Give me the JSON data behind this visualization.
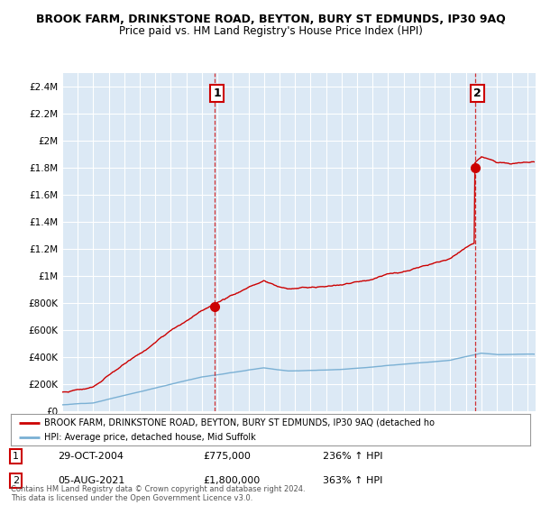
{
  "title": "BROOK FARM, DRINKSTONE ROAD, BEYTON, BURY ST EDMUNDS, IP30 9AQ",
  "subtitle": "Price paid vs. HM Land Registry's House Price Index (HPI)",
  "legend_red": "BROOK FARM, DRINKSTONE ROAD, BEYTON, BURY ST EDMUNDS, IP30 9AQ (detached ho",
  "legend_blue": "HPI: Average price, detached house, Mid Suffolk",
  "transaction1_label": "1",
  "transaction1_date": "29-OCT-2004",
  "transaction1_price": "£775,000",
  "transaction1_hpi": "236% ↑ HPI",
  "transaction1_year": 2004.83,
  "transaction1_value": 775000,
  "transaction2_label": "2",
  "transaction2_date": "05-AUG-2021",
  "transaction2_price": "£1,800,000",
  "transaction2_hpi": "363% ↑ HPI",
  "transaction2_year": 2021.58,
  "transaction2_value": 1800000,
  "red_color": "#cc0000",
  "blue_color": "#7ab0d4",
  "plot_bg_color": "#dce9f5",
  "background_color": "#ffffff",
  "grid_color": "#ffffff",
  "ylim": [
    0,
    2500000
  ],
  "xlim": [
    1995,
    2025.5
  ],
  "yticks": [
    0,
    200000,
    400000,
    600000,
    800000,
    1000000,
    1200000,
    1400000,
    1600000,
    1800000,
    2000000,
    2200000,
    2400000
  ],
  "ytick_labels": [
    "£0",
    "£200K",
    "£400K",
    "£600K",
    "£800K",
    "£1M",
    "£1.2M",
    "£1.4M",
    "£1.6M",
    "£1.8M",
    "£2M",
    "£2.2M",
    "£2.4M"
  ],
  "xticks": [
    1995,
    1996,
    1997,
    1998,
    1999,
    2000,
    2001,
    2002,
    2003,
    2004,
    2005,
    2006,
    2007,
    2008,
    2009,
    2010,
    2011,
    2012,
    2013,
    2014,
    2015,
    2016,
    2017,
    2018,
    2019,
    2020,
    2021,
    2022,
    2023,
    2024,
    2025
  ],
  "footer": "Contains HM Land Registry data © Crown copyright and database right 2024.\nThis data is licensed under the Open Government Licence v3.0."
}
